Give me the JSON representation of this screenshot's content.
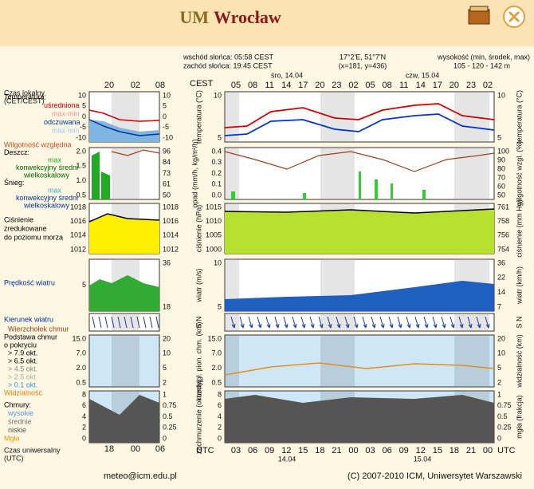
{
  "header": {
    "title_um": "UM",
    "title_city": "Wrocław"
  },
  "info": {
    "sunrise": "wschód słońca: 05:58 CEST",
    "sunset": "zachód słońca: 19:45 CEST",
    "coords": "17°2'E, 51°7'N",
    "grid": "(x=181, y=436)",
    "elev_title": "wysokość (min, środek, max)",
    "elev": "105 - 120 - 142 m"
  },
  "time": {
    "local_label": [
      "Czas lokalny",
      "(CET/CEST)"
    ],
    "cest": "CEST",
    "days": [
      "śro, 14.04",
      "czw, 15.04"
    ],
    "hours": [
      "05",
      "08",
      "11",
      "14",
      "17",
      "20",
      "23",
      "02",
      "05",
      "08",
      "11",
      "14",
      "17",
      "20",
      "23",
      "02"
    ],
    "small_hours": [
      "20",
      "02",
      "08"
    ],
    "utc_label": [
      "Czas uniwersalny",
      "(UTC)"
    ],
    "utc": "UTC",
    "utc_hours": [
      "03",
      "06",
      "09",
      "12",
      "15",
      "18",
      "21",
      "00",
      "03",
      "06",
      "09",
      "12",
      "15",
      "18",
      "21",
      "00"
    ],
    "utc_days": [
      "14.04",
      "15.04"
    ],
    "small_utc": [
      "18",
      "00",
      "06"
    ]
  },
  "panels": [
    {
      "small_left": [
        "10",
        "5",
        "0",
        "-5",
        "-10"
      ],
      "small_right": [
        "10",
        "5",
        "0",
        "-5",
        "-10"
      ],
      "main_left": [
        "10",
        "5"
      ],
      "main_right": [
        "10",
        "5"
      ],
      "left_label": "temperatura (°C)",
      "right_label": "temperatura (°C)",
      "legend": [
        "Temperatura:",
        "uśredniona",
        "max·min",
        "odczuwana",
        "max·min"
      ]
    },
    {
      "small_left": [
        "2.0",
        "1.5",
        "1.0",
        "0.5"
      ],
      "small_right": [
        "96",
        "84",
        "73",
        "61",
        "50"
      ],
      "main_left": [
        "0.4",
        "0.3",
        "0.2",
        "0.1",
        "0.0"
      ],
      "main_right": [
        "100",
        "90",
        "80",
        "70",
        "60",
        "50"
      ],
      "left_label": "opad (mm/h, kg/m²/h)",
      "right_label": "wilgotność wzgl. (%)",
      "legend": [
        "Wilgotność względna",
        "Deszcz:",
        "max",
        "konwekcyjny średni",
        "wielkoskalowy",
        "Śnieg:",
        "max",
        "konwekcyjny średni",
        "wielkoskalowy"
      ]
    },
    {
      "small_left": [
        "1018",
        "1016",
        "1014",
        "1012"
      ],
      "small_right": [
        "1018",
        "1016",
        "1014",
        "1012"
      ],
      "main_left": [
        "1015",
        "1010",
        "1005",
        "1000"
      ],
      "main_right": [
        "761",
        "758",
        "756",
        "754"
      ],
      "left_label": "ciśnienie (hPa)",
      "right_label": "ciśnienie (mm Hg)",
      "legend": [
        "Ciśnienie",
        "zredukowane",
        "do poziomu morza"
      ]
    },
    {
      "small_left": [
        "5"
      ],
      "small_right": [
        "36",
        "18"
      ],
      "main_left": [
        "10",
        "5"
      ],
      "main_right": [
        "36",
        "22",
        "14",
        "7"
      ],
      "left_label": "wiatr (m/s)",
      "right_label": "wiatr (km/h)",
      "legend": [
        "Prędkość wiatru"
      ]
    },
    {
      "small_left": [],
      "small_right": [],
      "main_left": [],
      "main_right": [],
      "left_label": "S N",
      "right_label": "S N",
      "legend": [
        "Kierunek wiatru"
      ]
    },
    {
      "small_left": [
        "15.0",
        "7.0",
        "2.0",
        "0.5"
      ],
      "small_right": [
        "20",
        "10",
        "5",
        "2"
      ],
      "main_left": [
        "15.0",
        "7.0",
        "2.0",
        "0.5"
      ],
      "main_right": [
        "20",
        "10",
        "5",
        "2"
      ],
      "left_label": "rozciągł. pion. chm. (km)",
      "right_label": "widzialność (km)",
      "legend": [
        "Wierzchołek chmur",
        "Podstawa chmur",
        "o pokryciu",
        "> 7.9 okt.",
        "> 6.5 okt.",
        "> 4.5 okt.",
        "> 2.5 okt.",
        "> 0.1 okt.",
        "Widzialność"
      ]
    },
    {
      "small_left": [
        "8",
        "6",
        "4",
        "2",
        "0"
      ],
      "small_right": [
        "1",
        "0.75",
        "0.5",
        "0.25",
        "0"
      ],
      "main_left": [
        "8",
        "6",
        "4",
        "2",
        "0"
      ],
      "main_right": [
        "1",
        "0.75",
        "0.5",
        "0.25",
        "0"
      ],
      "left_label": "zachmurzenie (oktanty)",
      "right_label": "mgła (frakcja)",
      "legend": [
        "Chmury:",
        "wysokie",
        "średnie",
        "niskie",
        "Mgła"
      ]
    }
  ],
  "footer": {
    "email": "meteo@icm.edu.pl",
    "copyright": "(C) 2007-2010 ICM, Uniwersytet Warszawski"
  }
}
